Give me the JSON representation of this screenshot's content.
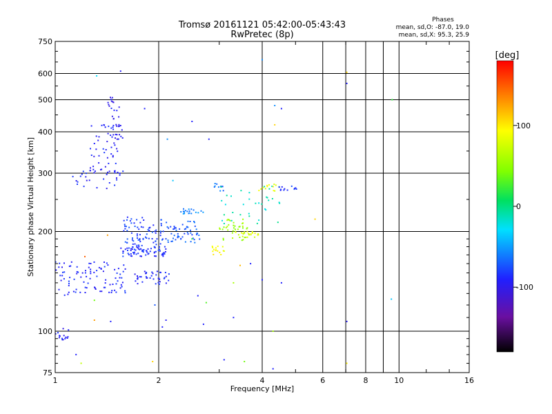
{
  "chart_data": {
    "type": "scatter",
    "title": "Tromsø 20161121 05:42:00-05:43:43",
    "subtitle": "RwPretec (8p)",
    "xlabel": "Frequency [MHz]",
    "ylabel": "Stationary phase Virtual Height [km]",
    "x_scale": "log",
    "y_scale": "log",
    "xlim": [
      1,
      16
    ],
    "ylim": [
      75,
      750
    ],
    "x_ticks": [
      "1",
      "2",
      "4",
      "6",
      "8",
      "10",
      "16"
    ],
    "x_tick_values": [
      1,
      2,
      4,
      6,
      8,
      10,
      16
    ],
    "x_minor_gridlines": [
      7,
      9
    ],
    "y_ticks": [
      "75",
      "100",
      "200",
      "300",
      "400",
      "500",
      "600",
      "750"
    ],
    "y_tick_values": [
      75,
      100,
      200,
      300,
      400,
      500,
      600,
      750
    ],
    "grid": true,
    "phase_stats": {
      "header": "Phases",
      "line_o": "mean, sd,O: -87.0, 19.0",
      "line_x": "mean, sd,X:  95.3, 25.9"
    },
    "colorbar": {
      "label": "[deg]",
      "tick_labels": [
        "100",
        "0",
        "-100"
      ],
      "tick_values": [
        100,
        0,
        -100
      ],
      "range": [
        -180,
        180
      ],
      "colormap": "rainbow (black-purple-blue-cyan-green-yellow-orange-red)"
    },
    "clusters": [
      {
        "f_range": [
          1.12,
          1.58
        ],
        "h_range": [
          268,
          310
        ],
        "phase": -100,
        "n": 30
      },
      {
        "f_range": [
          1.25,
          1.52
        ],
        "h_range": [
          300,
          420
        ],
        "phase": -102,
        "n": 45
      },
      {
        "f_range": [
          1.42,
          1.58
        ],
        "h_range": [
          380,
          510
        ],
        "phase": -105,
        "n": 35
      },
      {
        "f_range": [
          1.0,
          1.6
        ],
        "h_range": [
          128,
          162
        ],
        "phase": -98,
        "n": 95
      },
      {
        "f_range": [
          1.55,
          2.1
        ],
        "h_range": [
          168,
          180
        ],
        "phase": -95,
        "n": 70
      },
      {
        "f_range": [
          1.58,
          2.1
        ],
        "h_range": [
          180,
          222
        ],
        "phase": -88,
        "n": 80
      },
      {
        "f_range": [
          1.7,
          2.15
        ],
        "h_range": [
          138,
          152
        ],
        "phase": -100,
        "n": 40
      },
      {
        "f_range": [
          2.1,
          2.65
        ],
        "h_range": [
          185,
          215
        ],
        "phase": -78,
        "n": 55
      },
      {
        "f_range": [
          2.3,
          2.7
        ],
        "h_range": [
          225,
          235
        ],
        "phase": -62,
        "n": 20
      },
      {
        "f_range": [
          2.9,
          3.1
        ],
        "h_range": [
          265,
          280
        ],
        "phase": -70,
        "n": 10
      },
      {
        "f_range": [
          3.0,
          3.7
        ],
        "h_range": [
          188,
          218
        ],
        "phase": 55,
        "n": 40
      },
      {
        "f_range": [
          2.85,
          3.1
        ],
        "h_range": [
          170,
          182
        ],
        "phase": 95,
        "n": 15
      },
      {
        "f_range": [
          3.3,
          3.9
        ],
        "h_range": [
          192,
          200
        ],
        "phase": 80,
        "n": 20
      },
      {
        "f_range": [
          3.0,
          4.5
        ],
        "h_range": [
          210,
          275
        ],
        "phase": -15,
        "n": 35
      },
      {
        "f_range": [
          3.9,
          4.4
        ],
        "h_range": [
          265,
          278
        ],
        "phase": 88,
        "n": 12
      },
      {
        "f_range": [
          4.3,
          5.1
        ],
        "h_range": [
          266,
          275
        ],
        "phase": -92,
        "n": 12
      },
      {
        "f_range": [
          1.0,
          1.1
        ],
        "h_range": [
          94,
          102
        ],
        "phase": -103,
        "n": 15
      }
    ],
    "sparse_points": [
      {
        "f": 1.32,
        "h": 590,
        "phase": -30
      },
      {
        "f": 1.55,
        "h": 610,
        "phase": -105
      },
      {
        "f": 1.82,
        "h": 470,
        "phase": -100
      },
      {
        "f": 2.12,
        "h": 380,
        "phase": -60
      },
      {
        "f": 2.5,
        "h": 430,
        "phase": -100
      },
      {
        "f": 2.8,
        "h": 380,
        "phase": -100
      },
      {
        "f": 4.0,
        "h": 660,
        "phase": -60
      },
      {
        "f": 4.35,
        "h": 480,
        "phase": -60
      },
      {
        "f": 4.55,
        "h": 470,
        "phase": -100
      },
      {
        "f": 4.35,
        "h": 420,
        "phase": 110
      },
      {
        "f": 7.05,
        "h": 560,
        "phase": -100
      },
      {
        "f": 7.05,
        "h": 605,
        "phase": 110
      },
      {
        "f": 9.55,
        "h": 500,
        "phase": 20
      },
      {
        "f": 9.5,
        "h": 125,
        "phase": -40
      },
      {
        "f": 7.05,
        "h": 107,
        "phase": -105
      },
      {
        "f": 7.05,
        "h": 80,
        "phase": 100
      },
      {
        "f": 4.3,
        "h": 77,
        "phase": -100
      },
      {
        "f": 4.3,
        "h": 100,
        "phase": 60
      },
      {
        "f": 3.1,
        "h": 82,
        "phase": -100
      },
      {
        "f": 3.55,
        "h": 81,
        "phase": 40
      },
      {
        "f": 1.15,
        "h": 85,
        "phase": -100
      },
      {
        "f": 1.19,
        "h": 80,
        "phase": 70
      },
      {
        "f": 1.92,
        "h": 81,
        "phase": 110
      },
      {
        "f": 1.3,
        "h": 108,
        "phase": 130
      },
      {
        "f": 1.45,
        "h": 107,
        "phase": -100
      },
      {
        "f": 2.05,
        "h": 103,
        "phase": -100
      },
      {
        "f": 2.1,
        "h": 108,
        "phase": -105
      },
      {
        "f": 2.7,
        "h": 105,
        "phase": -100
      },
      {
        "f": 3.3,
        "h": 110,
        "phase": -100
      },
      {
        "f": 1.95,
        "h": 120,
        "phase": -80
      },
      {
        "f": 2.6,
        "h": 128,
        "phase": -100
      },
      {
        "f": 2.75,
        "h": 122,
        "phase": 30
      },
      {
        "f": 3.3,
        "h": 140,
        "phase": 60
      },
      {
        "f": 4.55,
        "h": 140,
        "phase": -100
      },
      {
        "f": 4.0,
        "h": 143,
        "phase": -100
      },
      {
        "f": 5.7,
        "h": 218,
        "phase": 110
      },
      {
        "f": 2.2,
        "h": 285,
        "phase": -40
      },
      {
        "f": 1.3,
        "h": 124,
        "phase": 40
      },
      {
        "f": 1.22,
        "h": 168,
        "phase": 150
      },
      {
        "f": 1.42,
        "h": 195,
        "phase": 130
      },
      {
        "f": 3.7,
        "h": 160,
        "phase": -100
      },
      {
        "f": 3.45,
        "h": 158,
        "phase": 120
      },
      {
        "f": 2.5,
        "h": 190,
        "phase": 20
      }
    ]
  }
}
